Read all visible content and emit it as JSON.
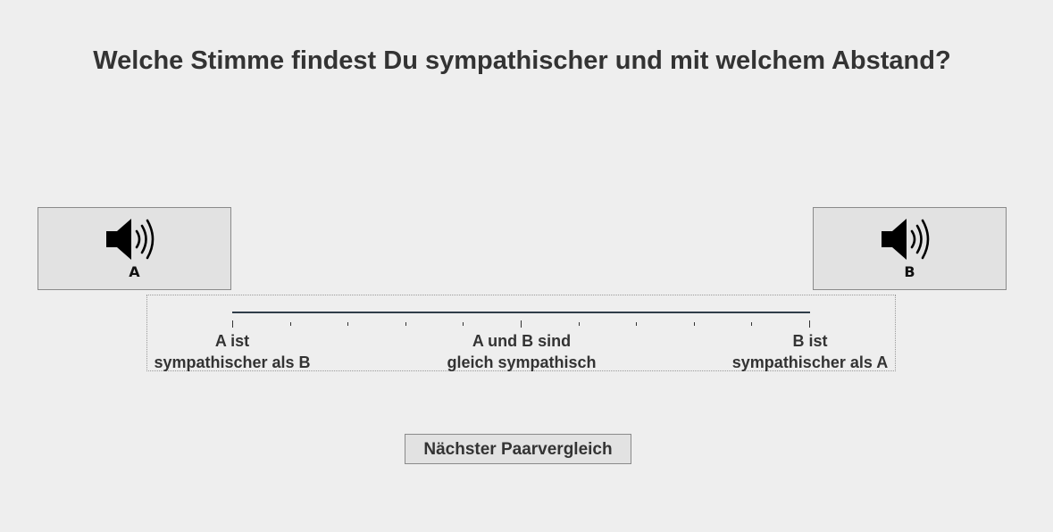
{
  "question": "Welche Stimme findest Du sympathischer und mit welchem Abstand?",
  "play_buttons": {
    "a": {
      "label": "A",
      "icon": "speaker-icon"
    },
    "b": {
      "label": "B",
      "icon": "speaker-icon"
    }
  },
  "scale": {
    "tick_count": 11,
    "labels": {
      "left_line1": "A ist",
      "left_line2": "sympathischer als B",
      "mid_line1": "A und B sind",
      "mid_line2": "gleich sympathisch",
      "right_line1": "B ist",
      "right_line2": "sympathischer als A"
    }
  },
  "next_button": {
    "label": "Nächster Paarvergleich"
  },
  "colors": {
    "background": "#eeeeee",
    "button_face": "#e2e2e2",
    "text": "#333333",
    "track": "#2f3d4a"
  }
}
